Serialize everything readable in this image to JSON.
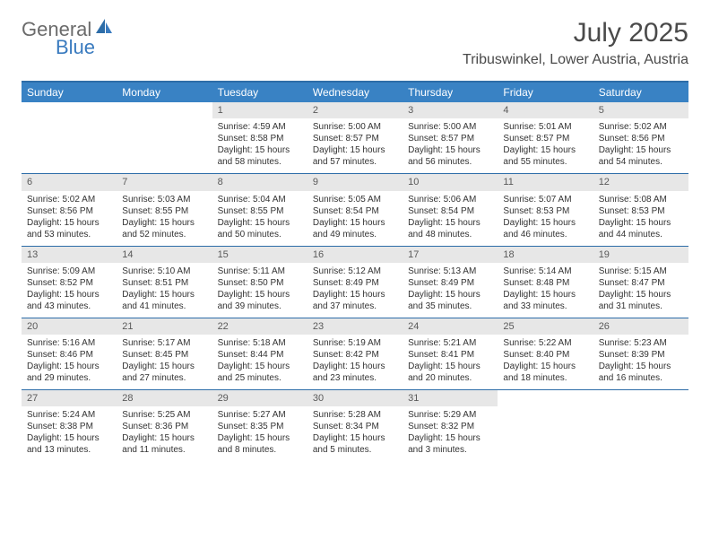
{
  "logo": {
    "text1": "General",
    "text2": "Blue"
  },
  "title": "July 2025",
  "location": "Tribuswinkel, Lower Austria, Austria",
  "colors": {
    "header_bg": "#3982c4",
    "header_text": "#ffffff",
    "border": "#2d6da8",
    "daynum_bg": "#e7e7e7",
    "logo_gray": "#6b6b6b",
    "logo_blue": "#3a7bbf"
  },
  "dayNames": [
    "Sunday",
    "Monday",
    "Tuesday",
    "Wednesday",
    "Thursday",
    "Friday",
    "Saturday"
  ],
  "weeks": [
    [
      null,
      null,
      {
        "n": "1",
        "sr": "4:59 AM",
        "ss": "8:58 PM",
        "dl": "15 hours and 58 minutes."
      },
      {
        "n": "2",
        "sr": "5:00 AM",
        "ss": "8:57 PM",
        "dl": "15 hours and 57 minutes."
      },
      {
        "n": "3",
        "sr": "5:00 AM",
        "ss": "8:57 PM",
        "dl": "15 hours and 56 minutes."
      },
      {
        "n": "4",
        "sr": "5:01 AM",
        "ss": "8:57 PM",
        "dl": "15 hours and 55 minutes."
      },
      {
        "n": "5",
        "sr": "5:02 AM",
        "ss": "8:56 PM",
        "dl": "15 hours and 54 minutes."
      }
    ],
    [
      {
        "n": "6",
        "sr": "5:02 AM",
        "ss": "8:56 PM",
        "dl": "15 hours and 53 minutes."
      },
      {
        "n": "7",
        "sr": "5:03 AM",
        "ss": "8:55 PM",
        "dl": "15 hours and 52 minutes."
      },
      {
        "n": "8",
        "sr": "5:04 AM",
        "ss": "8:55 PM",
        "dl": "15 hours and 50 minutes."
      },
      {
        "n": "9",
        "sr": "5:05 AM",
        "ss": "8:54 PM",
        "dl": "15 hours and 49 minutes."
      },
      {
        "n": "10",
        "sr": "5:06 AM",
        "ss": "8:54 PM",
        "dl": "15 hours and 48 minutes."
      },
      {
        "n": "11",
        "sr": "5:07 AM",
        "ss": "8:53 PM",
        "dl": "15 hours and 46 minutes."
      },
      {
        "n": "12",
        "sr": "5:08 AM",
        "ss": "8:53 PM",
        "dl": "15 hours and 44 minutes."
      }
    ],
    [
      {
        "n": "13",
        "sr": "5:09 AM",
        "ss": "8:52 PM",
        "dl": "15 hours and 43 minutes."
      },
      {
        "n": "14",
        "sr": "5:10 AM",
        "ss": "8:51 PM",
        "dl": "15 hours and 41 minutes."
      },
      {
        "n": "15",
        "sr": "5:11 AM",
        "ss": "8:50 PM",
        "dl": "15 hours and 39 minutes."
      },
      {
        "n": "16",
        "sr": "5:12 AM",
        "ss": "8:49 PM",
        "dl": "15 hours and 37 minutes."
      },
      {
        "n": "17",
        "sr": "5:13 AM",
        "ss": "8:49 PM",
        "dl": "15 hours and 35 minutes."
      },
      {
        "n": "18",
        "sr": "5:14 AM",
        "ss": "8:48 PM",
        "dl": "15 hours and 33 minutes."
      },
      {
        "n": "19",
        "sr": "5:15 AM",
        "ss": "8:47 PM",
        "dl": "15 hours and 31 minutes."
      }
    ],
    [
      {
        "n": "20",
        "sr": "5:16 AM",
        "ss": "8:46 PM",
        "dl": "15 hours and 29 minutes."
      },
      {
        "n": "21",
        "sr": "5:17 AM",
        "ss": "8:45 PM",
        "dl": "15 hours and 27 minutes."
      },
      {
        "n": "22",
        "sr": "5:18 AM",
        "ss": "8:44 PM",
        "dl": "15 hours and 25 minutes."
      },
      {
        "n": "23",
        "sr": "5:19 AM",
        "ss": "8:42 PM",
        "dl": "15 hours and 23 minutes."
      },
      {
        "n": "24",
        "sr": "5:21 AM",
        "ss": "8:41 PM",
        "dl": "15 hours and 20 minutes."
      },
      {
        "n": "25",
        "sr": "5:22 AM",
        "ss": "8:40 PM",
        "dl": "15 hours and 18 minutes."
      },
      {
        "n": "26",
        "sr": "5:23 AM",
        "ss": "8:39 PM",
        "dl": "15 hours and 16 minutes."
      }
    ],
    [
      {
        "n": "27",
        "sr": "5:24 AM",
        "ss": "8:38 PM",
        "dl": "15 hours and 13 minutes."
      },
      {
        "n": "28",
        "sr": "5:25 AM",
        "ss": "8:36 PM",
        "dl": "15 hours and 11 minutes."
      },
      {
        "n": "29",
        "sr": "5:27 AM",
        "ss": "8:35 PM",
        "dl": "15 hours and 8 minutes."
      },
      {
        "n": "30",
        "sr": "5:28 AM",
        "ss": "8:34 PM",
        "dl": "15 hours and 5 minutes."
      },
      {
        "n": "31",
        "sr": "5:29 AM",
        "ss": "8:32 PM",
        "dl": "15 hours and 3 minutes."
      },
      null,
      null
    ]
  ],
  "labels": {
    "sunrise": "Sunrise:",
    "sunset": "Sunset:",
    "daylight": "Daylight:"
  }
}
